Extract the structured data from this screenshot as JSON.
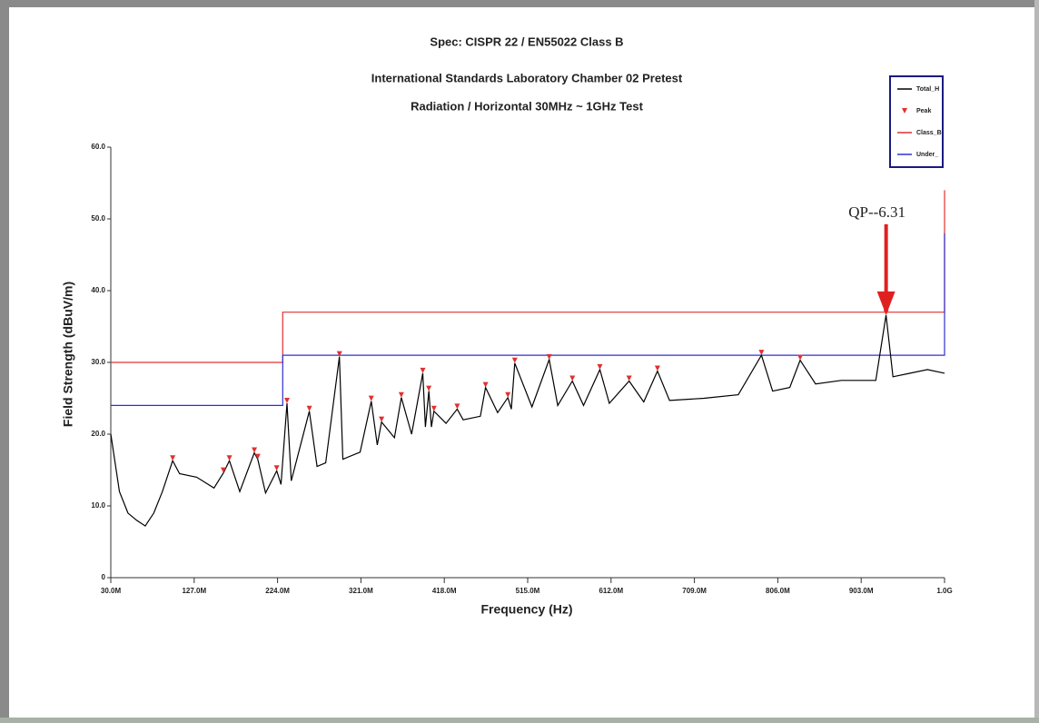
{
  "chart_data": {
    "type": "line",
    "title": "Spec: CISPR 22 / EN55022 Class B",
    "subtitles": [
      "International Standards Laboratory Chamber 02 Pretest",
      "Radiation / Horizontal 30MHz ~ 1GHz Test"
    ],
    "x_label": "Frequency (Hz)",
    "y_label": "Field Strength (dBuV/m)",
    "xlim": [
      30,
      1000
    ],
    "xticks": [
      {
        "value": 30,
        "label": "30.0M"
      },
      {
        "value": 127,
        "label": "127.0M"
      },
      {
        "value": 224,
        "label": "224.0M"
      },
      {
        "value": 321,
        "label": "321.0M"
      },
      {
        "value": 418,
        "label": "418.0M"
      },
      {
        "value": 515,
        "label": "515.0M"
      },
      {
        "value": 612,
        "label": "612.0M"
      },
      {
        "value": 709,
        "label": "709.0M"
      },
      {
        "value": 806,
        "label": "806.0M"
      },
      {
        "value": 903,
        "label": "903.0M"
      },
      {
        "value": 1000,
        "label": "1.0G"
      }
    ],
    "ylim": [
      0,
      60
    ],
    "yticks": [
      0,
      {
        "value": 10,
        "label": "10.0"
      },
      {
        "value": 20,
        "label": "20.0"
      },
      {
        "value": 30,
        "label": "30.0"
      },
      {
        "value": 40,
        "label": "40.0"
      },
      {
        "value": 50,
        "label": "50.0"
      },
      {
        "value": 60,
        "label": "60.0"
      }
    ],
    "legend": "top-right",
    "series": [
      {
        "name": "Total_H",
        "color": "#000000",
        "kind": "line",
        "x": [
          30,
          40,
          50,
          60,
          70,
          80,
          90,
          102,
          110,
          130,
          150,
          161,
          168,
          180,
          197,
          201,
          210,
          223,
          228,
          235,
          240,
          261,
          270,
          280,
          296,
          300,
          320,
          333,
          340,
          345,
          360,
          368,
          380,
          393,
          396,
          400,
          403,
          406,
          420,
          433,
          440,
          460,
          466,
          480,
          492,
          496,
          500,
          520,
          540,
          550,
          567,
          580,
          599,
          610,
          633,
          650,
          666,
          680,
          720,
          760,
          787,
          800,
          820,
          832,
          850,
          880,
          920,
          932,
          940,
          960,
          980,
          1000
        ],
        "values": [
          20,
          12,
          9,
          8,
          7.2,
          9,
          12,
          16.3,
          14.5,
          14,
          12.5,
          14.6,
          16.3,
          12,
          17.4,
          16.5,
          11.8,
          14.9,
          13,
          24.3,
          13.5,
          23.2,
          15.5,
          16,
          30.8,
          16.5,
          17.5,
          24.6,
          18.5,
          21.7,
          19.5,
          25.1,
          20,
          28.5,
          21,
          26,
          21,
          23.2,
          21.5,
          23.5,
          22,
          22.5,
          26.5,
          23,
          25.1,
          23.5,
          29.9,
          23.8,
          30.4,
          24,
          27.4,
          24,
          29,
          24.3,
          27.4,
          24.5,
          28.8,
          24.7,
          25,
          25.5,
          31,
          26,
          26.5,
          30.3,
          27,
          27.5,
          27.5,
          36.6,
          28,
          28.5,
          29,
          28.5
        ]
      },
      {
        "name": "Peak",
        "color": "#e03030",
        "kind": "marker",
        "x": [
          102,
          161,
          168,
          197,
          201,
          223,
          235,
          261,
          296,
          333,
          345,
          368,
          393,
          400,
          406,
          433,
          466,
          492,
          500,
          540,
          567,
          599,
          633,
          666,
          787,
          832,
          932
        ],
        "values": [
          16.3,
          14.6,
          16.3,
          17.4,
          16.5,
          14.9,
          24.3,
          23.2,
          30.8,
          24.6,
          21.7,
          25.1,
          28.5,
          26,
          23.2,
          23.5,
          26.5,
          25.1,
          29.9,
          30.4,
          27.4,
          29,
          27.4,
          28.8,
          31,
          30.3,
          36.6
        ]
      },
      {
        "name": "Class_B",
        "color": "#e03030",
        "kind": "line",
        "x": [
          30,
          230,
          230,
          1000,
          1000
        ],
        "values": [
          30,
          30,
          37,
          37,
          54
        ]
      },
      {
        "name": "Under_",
        "color": "#3030d0",
        "kind": "line",
        "x": [
          30,
          230,
          230,
          1000,
          1000
        ],
        "values": [
          24,
          24,
          31,
          31,
          48
        ]
      }
    ],
    "annotations": [
      {
        "text": "QP--6.31",
        "x": 932,
        "y": 36.6,
        "color": "#e02020"
      }
    ]
  }
}
